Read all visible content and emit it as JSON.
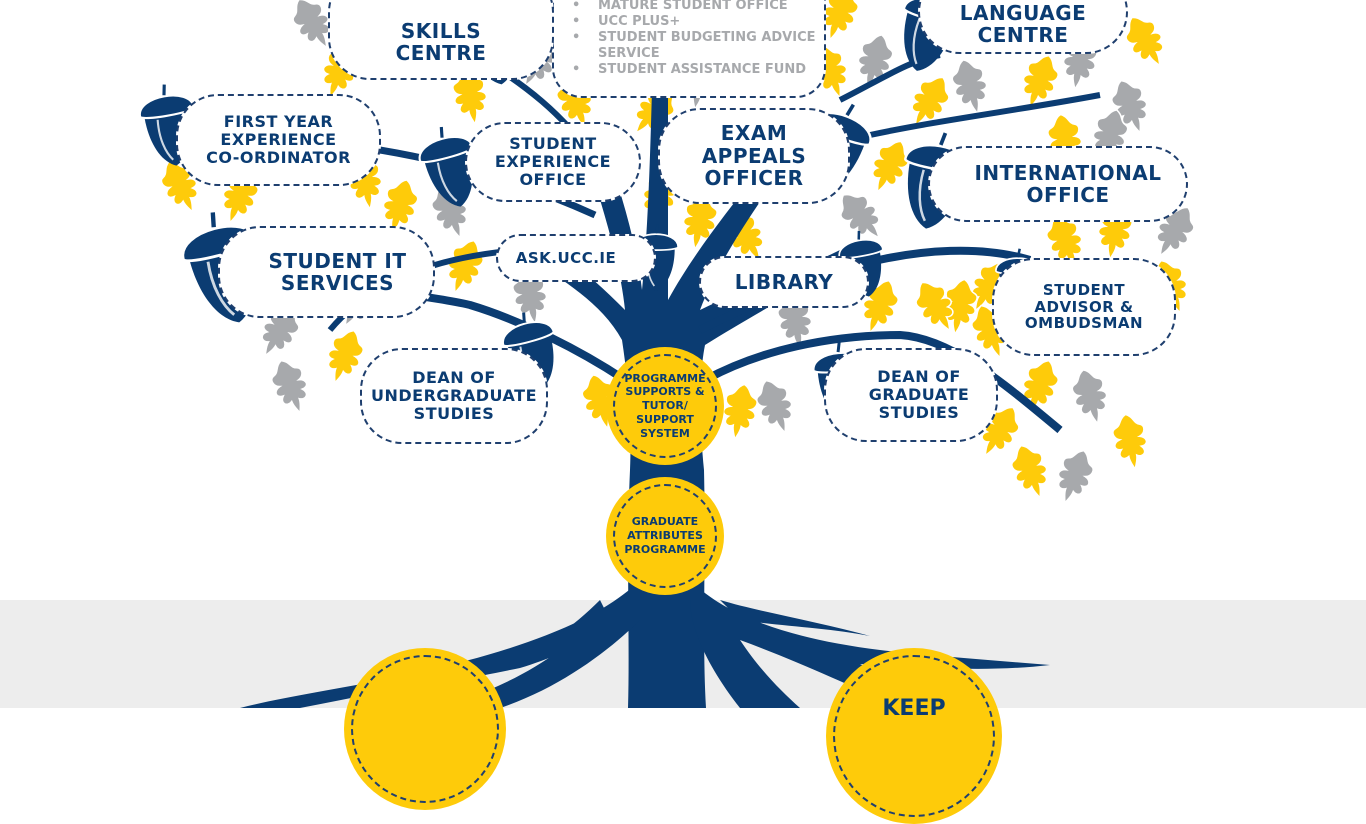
{
  "colors": {
    "navy": "#0b3c72",
    "yellow": "#fecb0a",
    "grey": "#a7a9ac",
    "band": "#ededed"
  },
  "nodes": {
    "skills_centre": {
      "line1": "SKILLS",
      "line2": "CENTRE"
    },
    "language_centre": {
      "line1": "LANGUAGE",
      "line2": "CENTRE"
    },
    "first_year": {
      "line1": "FIRST YEAR",
      "line2": "EXPERIENCE",
      "line3": "CO-ORDINATOR"
    },
    "student_experience": {
      "line1": "STUDENT",
      "line2": "EXPERIENCE",
      "line3": "OFFICE"
    },
    "exam_appeals": {
      "line1": "EXAM",
      "line2": "APPEALS",
      "line3": "OFFICER"
    },
    "international": {
      "line1": "INTERNATIONAL",
      "line2": "OFFICE"
    },
    "student_it": {
      "line1": "STUDENT IT",
      "line2": "SERVICES"
    },
    "ask_ucc": {
      "line1": "ASK.UCC.IE"
    },
    "library": {
      "line1": "LIBRARY"
    },
    "student_advisor": {
      "line1": "STUDENT",
      "line2": "ADVISOR &",
      "line3": "OMBUDSMAN"
    },
    "dean_ug": {
      "line1": "DEAN OF",
      "line2": "UNDERGRADUATE",
      "line3": "STUDIES"
    },
    "dean_grad": {
      "line1": "DEAN OF",
      "line2": "GRADUATE",
      "line3": "STUDIES"
    }
  },
  "services_list": [
    "MATURE STUDENT OFFICE",
    "UCC PLUS+",
    "STUDENT BUDGETING ADVICE SERVICE",
    "STUDENT ASSISTANCE FUND"
  ],
  "circles": {
    "programme": {
      "line1": "PROGRAMME",
      "line2": "SUPPORTS &",
      "line3": "TUTOR/",
      "line4": "SUPPORT",
      "line5": "SYSTEM"
    },
    "graduate": {
      "line1": "GRADUATE",
      "line2": "ATTRIBUTES",
      "line3": "PROGRAMME"
    }
  },
  "root_circles": {
    "right_label": "KEEP"
  }
}
